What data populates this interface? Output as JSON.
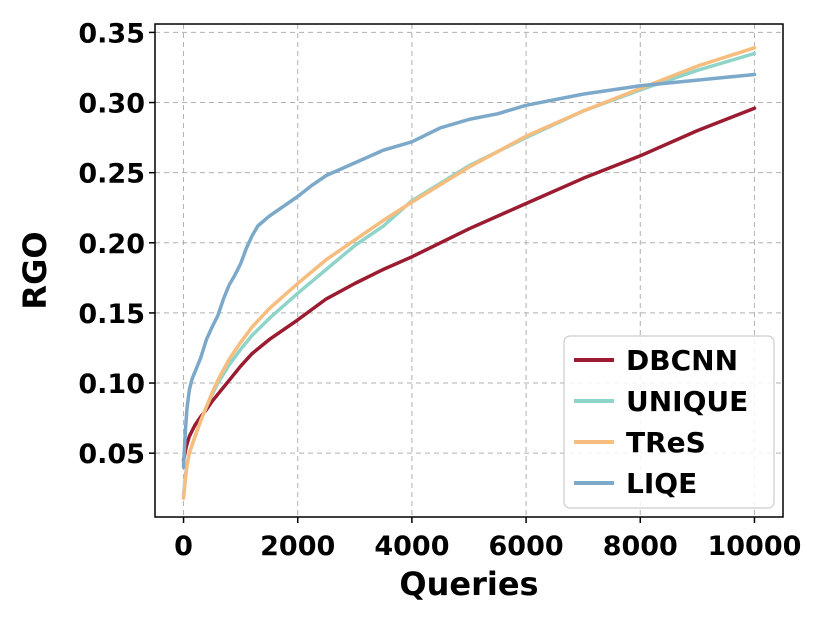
{
  "chart_data": {
    "type": "line",
    "title": "",
    "xlabel": "Queries",
    "ylabel": "RGO",
    "xlim": [
      -500,
      10500
    ],
    "ylim": [
      0.0045,
      0.356
    ],
    "xticks": [
      0,
      2000,
      4000,
      6000,
      8000,
      10000
    ],
    "xtick_labels": [
      "0",
      "2000",
      "4000",
      "6000",
      "8000",
      "10000"
    ],
    "yticks": [
      0.05,
      0.1,
      0.15,
      0.2,
      0.25,
      0.3,
      0.35
    ],
    "ytick_labels": [
      "0.05",
      "0.10",
      "0.15",
      "0.20",
      "0.25",
      "0.30",
      "0.35"
    ],
    "grid": true,
    "legend_position": "lower-right",
    "series": [
      {
        "name": "DBCNN",
        "color": "#9b1b30",
        "points": [
          [
            0,
            0.045
          ],
          [
            50,
            0.055
          ],
          [
            100,
            0.062
          ],
          [
            200,
            0.07
          ],
          [
            300,
            0.076
          ],
          [
            400,
            0.081
          ],
          [
            500,
            0.087
          ],
          [
            600,
            0.092
          ],
          [
            800,
            0.102
          ],
          [
            1000,
            0.112
          ],
          [
            1200,
            0.121
          ],
          [
            1500,
            0.131
          ],
          [
            2000,
            0.145
          ],
          [
            2500,
            0.16
          ],
          [
            3000,
            0.171
          ],
          [
            3500,
            0.181
          ],
          [
            4000,
            0.19
          ],
          [
            5000,
            0.21
          ],
          [
            6000,
            0.228
          ],
          [
            7000,
            0.246
          ],
          [
            8000,
            0.262
          ],
          [
            9000,
            0.28
          ],
          [
            10000,
            0.296
          ]
        ]
      },
      {
        "name": "UNIQUE",
        "color": "#8fd4c9",
        "points": [
          [
            0,
            0.02
          ],
          [
            50,
            0.04
          ],
          [
            100,
            0.05
          ],
          [
            200,
            0.062
          ],
          [
            300,
            0.073
          ],
          [
            400,
            0.083
          ],
          [
            500,
            0.092
          ],
          [
            600,
            0.1
          ],
          [
            800,
            0.113
          ],
          [
            1000,
            0.124
          ],
          [
            1200,
            0.134
          ],
          [
            1500,
            0.146
          ],
          [
            2000,
            0.164
          ],
          [
            2500,
            0.181
          ],
          [
            3000,
            0.198
          ],
          [
            3500,
            0.212
          ],
          [
            4000,
            0.23
          ],
          [
            5000,
            0.255
          ],
          [
            6000,
            0.275
          ],
          [
            7000,
            0.294
          ],
          [
            8000,
            0.309
          ],
          [
            9000,
            0.323
          ],
          [
            10000,
            0.335
          ]
        ]
      },
      {
        "name": "TReS",
        "color": "#f7bd7e",
        "points": [
          [
            0,
            0.018
          ],
          [
            50,
            0.038
          ],
          [
            100,
            0.05
          ],
          [
            200,
            0.062
          ],
          [
            300,
            0.073
          ],
          [
            400,
            0.083
          ],
          [
            500,
            0.093
          ],
          [
            600,
            0.102
          ],
          [
            800,
            0.117
          ],
          [
            1000,
            0.129
          ],
          [
            1200,
            0.14
          ],
          [
            1500,
            0.153
          ],
          [
            2000,
            0.171
          ],
          [
            2500,
            0.188
          ],
          [
            3000,
            0.202
          ],
          [
            3500,
            0.216
          ],
          [
            4000,
            0.229
          ],
          [
            5000,
            0.254
          ],
          [
            6000,
            0.276
          ],
          [
            7000,
            0.294
          ],
          [
            8000,
            0.31
          ],
          [
            9000,
            0.326
          ],
          [
            10000,
            0.339
          ]
        ]
      },
      {
        "name": "LIQE",
        "color": "#7ca9c9",
        "points": [
          [
            0,
            0.04
          ],
          [
            30,
            0.065
          ],
          [
            60,
            0.082
          ],
          [
            100,
            0.095
          ],
          [
            150,
            0.103
          ],
          [
            200,
            0.108
          ],
          [
            300,
            0.118
          ],
          [
            400,
            0.131
          ],
          [
            500,
            0.14
          ],
          [
            600,
            0.148
          ],
          [
            700,
            0.16
          ],
          [
            800,
            0.17
          ],
          [
            900,
            0.177
          ],
          [
            1000,
            0.185
          ],
          [
            1100,
            0.196
          ],
          [
            1200,
            0.205
          ],
          [
            1300,
            0.212
          ],
          [
            1500,
            0.219
          ],
          [
            1750,
            0.226
          ],
          [
            2000,
            0.233
          ],
          [
            2250,
            0.241
          ],
          [
            2500,
            0.248
          ],
          [
            3000,
            0.257
          ],
          [
            3500,
            0.266
          ],
          [
            4000,
            0.272
          ],
          [
            4500,
            0.282
          ],
          [
            5000,
            0.288
          ],
          [
            5500,
            0.292
          ],
          [
            6000,
            0.298
          ],
          [
            7000,
            0.306
          ],
          [
            8000,
            0.312
          ],
          [
            9000,
            0.316
          ],
          [
            10000,
            0.32
          ]
        ]
      }
    ]
  }
}
